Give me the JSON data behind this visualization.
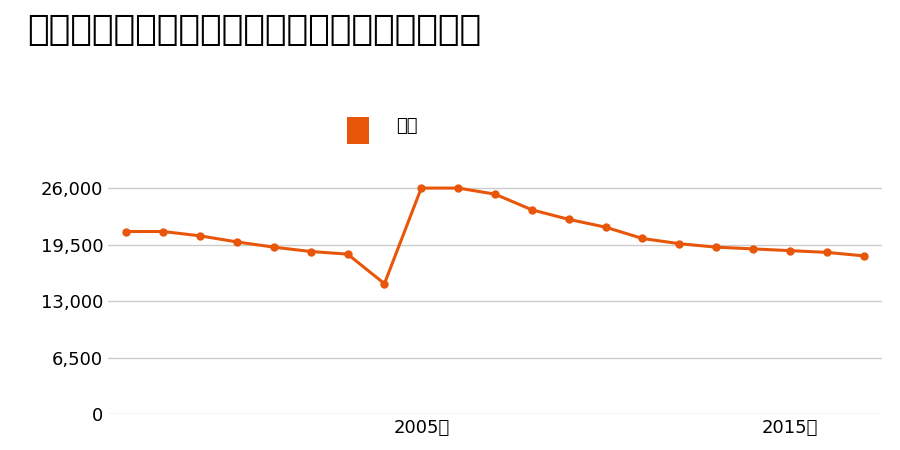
{
  "title": "秋田県能代市落合字下谷地１１番３の地価推移",
  "legend_label": "価格",
  "line_color": "#E8560A",
  "marker_color": "#E8560A",
  "background_color": "#ffffff",
  "years": [
    1997,
    1998,
    1999,
    2000,
    2001,
    2002,
    2003,
    2004,
    2005,
    2006,
    2007,
    2008,
    2009,
    2010,
    2011,
    2012,
    2013,
    2014,
    2015,
    2016,
    2017
  ],
  "values": [
    21000,
    21000,
    20500,
    19800,
    19200,
    18700,
    18400,
    15000,
    26000,
    26000,
    25300,
    23500,
    22400,
    21500,
    20200,
    19600,
    19200,
    19000,
    18800,
    18600,
    18200
  ],
  "yticks": [
    0,
    6500,
    13000,
    19500,
    26000
  ],
  "ytick_labels": [
    "0",
    "6,500",
    "13,000",
    "19,500",
    "26,000"
  ],
  "xtick_years": [
    2005,
    2015
  ],
  "xtick_labels": [
    "2005年",
    "2015年"
  ],
  "ylim": [
    0,
    29000
  ],
  "title_fontsize": 26,
  "legend_fontsize": 13,
  "tick_fontsize": 13,
  "grid_color": "#cccccc",
  "marker_size": 5,
  "line_width": 2.2
}
